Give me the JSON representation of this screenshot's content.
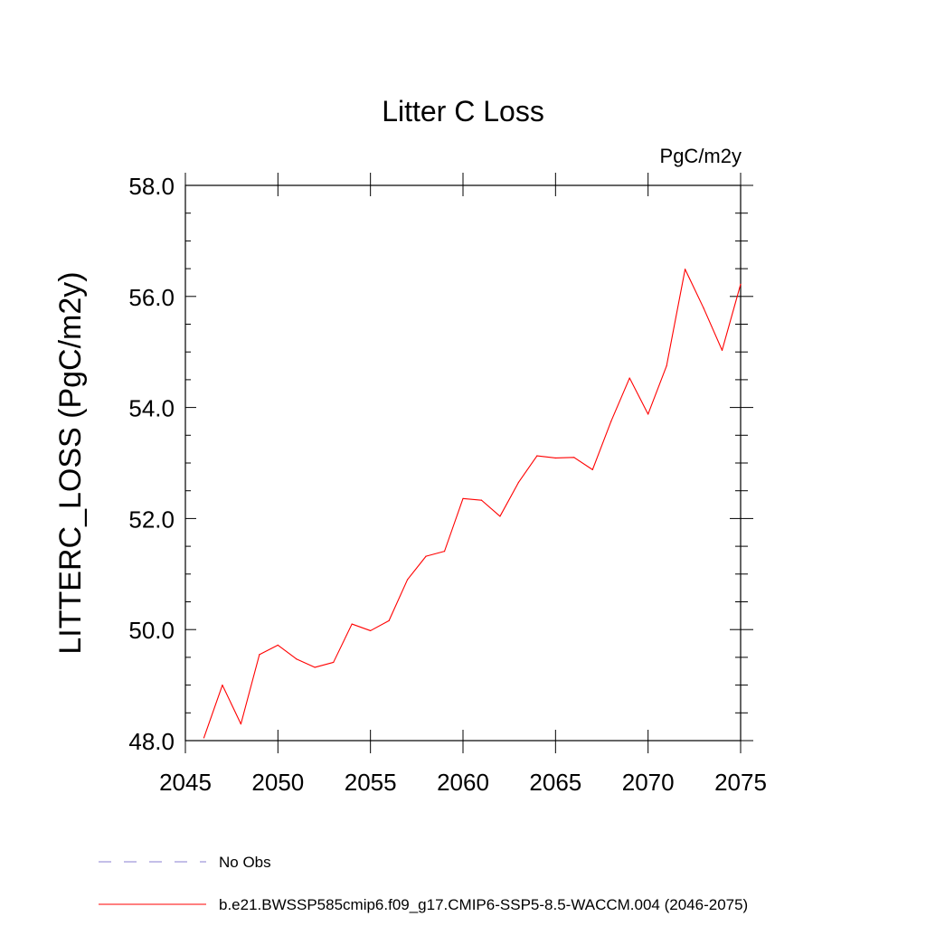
{
  "chart_data": {
    "type": "line",
    "title": "Litter C Loss",
    "units_label": "PgC/m2y",
    "xlabel": "",
    "ylabel": "LITTERC_LOSS  (PgC/m2y)",
    "xlim": [
      2045,
      2075
    ],
    "ylim": [
      48.0,
      58.0
    ],
    "x_ticks": [
      2045,
      2050,
      2055,
      2060,
      2065,
      2070,
      2075
    ],
    "x_tick_labels": [
      "2045",
      "2050",
      "2055",
      "2060",
      "2065",
      "2070",
      "2075"
    ],
    "y_ticks": [
      48.0,
      50.0,
      52.0,
      54.0,
      56.0,
      58.0
    ],
    "y_tick_labels": [
      "48.0",
      "50.0",
      "52.0",
      "54.0",
      "56.0",
      "58.0"
    ],
    "grid": false,
    "series": [
      {
        "name": "b.e21.BWSSP585cmip6.f09_g17.CMIP6-SSP5-8.5-WACCM.004 (2046-2075)",
        "color": "#ff0000",
        "style": "solid",
        "x": [
          2046,
          2047,
          2048,
          2049,
          2050,
          2051,
          2052,
          2053,
          2054,
          2055,
          2056,
          2057,
          2058,
          2059,
          2060,
          2061,
          2062,
          2063,
          2064,
          2065,
          2066,
          2067,
          2068,
          2069,
          2070,
          2071,
          2072,
          2073,
          2074,
          2075
        ],
        "values": [
          48.05,
          49.0,
          48.3,
          49.55,
          49.72,
          49.47,
          49.32,
          49.41,
          50.1,
          49.98,
          50.16,
          50.9,
          51.32,
          51.41,
          52.36,
          52.33,
          52.04,
          52.65,
          53.13,
          53.09,
          53.1,
          52.88,
          53.75,
          54.53,
          53.88,
          54.75,
          56.49,
          55.79,
          55.03,
          56.22
        ]
      }
    ],
    "legend": [
      {
        "label": "No Obs",
        "color": "#8a7fd0",
        "style": "dashed"
      },
      {
        "label": "b.e21.BWSSP585cmip6.f09_g17.CMIP6-SSP5-8.5-WACCM.004 (2046-2075)",
        "color": "#ff0000",
        "style": "solid"
      }
    ],
    "legend_position": "bottom-left"
  }
}
